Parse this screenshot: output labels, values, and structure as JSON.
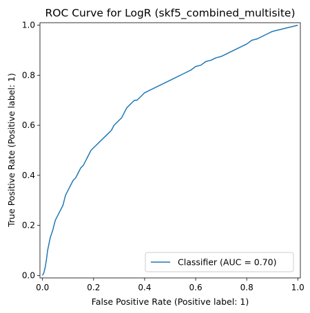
{
  "chart_data": {
    "type": "line",
    "title": "ROC Curve for LogR (skf5_combined_multisite)",
    "xlabel": "False Positive Rate (Positive label: 1)",
    "ylabel": "True Positive Rate (Positive label: 1)",
    "xlim": [
      -0.01,
      1.01
    ],
    "ylim": [
      -0.01,
      1.01
    ],
    "x_ticks": [
      "0.0",
      "0.2",
      "0.4",
      "0.6",
      "0.8",
      "1.0"
    ],
    "y_ticks": [
      "0.0",
      "0.2",
      "0.4",
      "0.6",
      "0.8",
      "1.0"
    ],
    "grid": false,
    "legend_position": "lower-right",
    "series": [
      {
        "name": "Classifier (AUC = 0.70)",
        "color": "#1f77b4",
        "x": [
          0.0,
          0.005,
          0.01,
          0.015,
          0.02,
          0.03,
          0.04,
          0.05,
          0.06,
          0.07,
          0.08,
          0.085,
          0.09,
          0.1,
          0.11,
          0.12,
          0.13,
          0.14,
          0.15,
          0.16,
          0.17,
          0.18,
          0.19,
          0.2,
          0.21,
          0.22,
          0.23,
          0.24,
          0.25,
          0.26,
          0.27,
          0.28,
          0.29,
          0.3,
          0.31,
          0.32,
          0.33,
          0.34,
          0.35,
          0.36,
          0.37,
          0.38,
          0.39,
          0.4,
          0.41,
          0.42,
          0.44,
          0.46,
          0.48,
          0.5,
          0.52,
          0.54,
          0.56,
          0.58,
          0.6,
          0.62,
          0.64,
          0.66,
          0.68,
          0.7,
          0.72,
          0.74,
          0.76,
          0.78,
          0.8,
          0.82,
          0.84,
          0.86,
          0.88,
          0.9,
          0.92,
          0.94,
          0.96,
          0.98,
          1.0
        ],
        "y": [
          0.0,
          0.01,
          0.03,
          0.06,
          0.1,
          0.15,
          0.18,
          0.22,
          0.24,
          0.26,
          0.28,
          0.3,
          0.32,
          0.34,
          0.36,
          0.38,
          0.39,
          0.41,
          0.43,
          0.44,
          0.46,
          0.48,
          0.5,
          0.51,
          0.52,
          0.53,
          0.54,
          0.55,
          0.56,
          0.57,
          0.58,
          0.6,
          0.61,
          0.62,
          0.63,
          0.65,
          0.67,
          0.68,
          0.69,
          0.7,
          0.7,
          0.71,
          0.72,
          0.73,
          0.735,
          0.74,
          0.75,
          0.76,
          0.77,
          0.78,
          0.79,
          0.8,
          0.81,
          0.82,
          0.835,
          0.84,
          0.855,
          0.86,
          0.87,
          0.875,
          0.885,
          0.895,
          0.905,
          0.915,
          0.925,
          0.94,
          0.945,
          0.955,
          0.965,
          0.975,
          0.98,
          0.985,
          0.99,
          0.995,
          1.0
        ]
      }
    ]
  }
}
